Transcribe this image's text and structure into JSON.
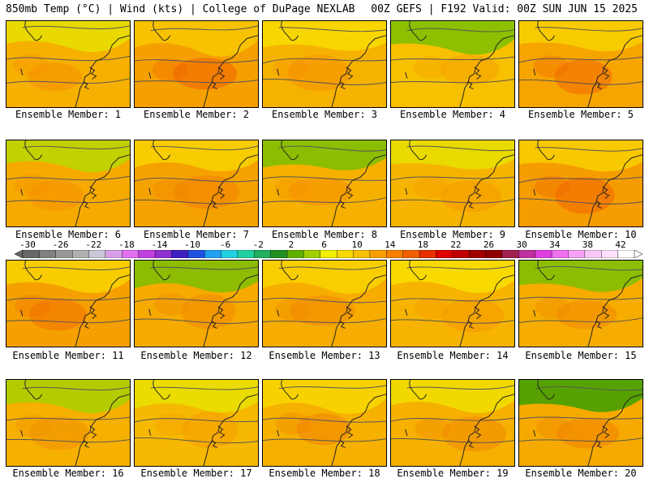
{
  "header": {
    "left": "850mb Temp (°C) | Wind (kts) | College of DuPage NEXLAB",
    "right": "00Z GEFS | F192 Valid: 00Z SUN JUN 15 2025"
  },
  "members": [
    {
      "label": "Ensemble Member: 1",
      "style": {
        "base": "#f6b000",
        "warm": "#f59000",
        "cool": "#e6e000"
      }
    },
    {
      "label": "Ensemble Member: 2",
      "style": {
        "base": "#f5a000",
        "warm": "#f06000",
        "cool": "#f8c800"
      }
    },
    {
      "label": "Ensemble Member: 3",
      "style": {
        "base": "#f6b200",
        "warm": "#f69000",
        "cool": "#f8dc00"
      }
    },
    {
      "label": "Ensemble Member: 4",
      "style": {
        "base": "#f7c000",
        "warm": "#f6a000",
        "cool": "#7ac000"
      }
    },
    {
      "label": "Ensemble Member: 5",
      "style": {
        "base": "#f6a400",
        "warm": "#f06800",
        "cool": "#f8d200"
      }
    },
    {
      "label": "Ensemble Member: 6",
      "style": {
        "base": "#f6aa00",
        "warm": "#f69000",
        "cool": "#b8d800"
      }
    },
    {
      "label": "Ensemble Member: 7",
      "style": {
        "base": "#f5a200",
        "warm": "#f08000",
        "cool": "#f8d400"
      }
    },
    {
      "label": "Ensemble Member: 8",
      "style": {
        "base": "#f6b000",
        "warm": "#f69000",
        "cool": "#7ac000"
      }
    },
    {
      "label": "Ensemble Member: 9",
      "style": {
        "base": "#f6b400",
        "warm": "#f69800",
        "cool": "#e6e000"
      }
    },
    {
      "label": "Ensemble Member: 10",
      "style": {
        "base": "#f59c00",
        "warm": "#f06400",
        "cool": "#f8d000"
      }
    },
    {
      "label": "Ensemble Member: 11",
      "style": {
        "base": "#f5a000",
        "warm": "#f07000",
        "cool": "#f8d400"
      }
    },
    {
      "label": "Ensemble Member: 12",
      "style": {
        "base": "#f6aa00",
        "warm": "#f08800",
        "cool": "#7ac000"
      }
    },
    {
      "label": "Ensemble Member: 13",
      "style": {
        "base": "#f6ac00",
        "warm": "#f08800",
        "cool": "#f8d400"
      }
    },
    {
      "label": "Ensemble Member: 14",
      "style": {
        "base": "#f6b400",
        "warm": "#f69800",
        "cool": "#f8e000"
      }
    },
    {
      "label": "Ensemble Member: 15",
      "style": {
        "base": "#f6ac00",
        "warm": "#f08800",
        "cool": "#7ac000"
      }
    },
    {
      "label": "Ensemble Member: 16",
      "style": {
        "base": "#f6b000",
        "warm": "#f09000",
        "cool": "#a8d000"
      }
    },
    {
      "label": "Ensemble Member: 17",
      "style": {
        "base": "#f6b800",
        "warm": "#f69c00",
        "cool": "#e8e000"
      }
    },
    {
      "label": "Ensemble Member: 18",
      "style": {
        "base": "#f6b000",
        "warm": "#f08400",
        "cool": "#f8d800"
      }
    },
    {
      "label": "Ensemble Member: 19",
      "style": {
        "base": "#f6b000",
        "warm": "#f08800",
        "cool": "#f0e000"
      }
    },
    {
      "label": "Ensemble Member: 20",
      "style": {
        "base": "#f6aa00",
        "warm": "#f08000",
        "cool": "#3aa000"
      }
    }
  ],
  "colorbar": {
    "labels": [
      "-30",
      "-26",
      "-22",
      "-18",
      "-14",
      "-10",
      "-6",
      "-2",
      "2",
      "6",
      "10",
      "14",
      "18",
      "22",
      "26",
      "30",
      "34",
      "38",
      "42"
    ],
    "colors": [
      "#686868",
      "#808080",
      "#989898",
      "#b0b0b0",
      "#c8c8d8",
      "#d8a0e8",
      "#e070f0",
      "#c040e0",
      "#9030d0",
      "#4020c0",
      "#2050e0",
      "#20a0f0",
      "#20d0e0",
      "#20d0a0",
      "#20b060",
      "#209020",
      "#60b000",
      "#a0d000",
      "#f0f000",
      "#f8d800",
      "#f8c000",
      "#f8a000",
      "#f88000",
      "#f06000",
      "#e83000",
      "#e00000",
      "#c00000",
      "#a00000",
      "#900000",
      "#a02050",
      "#c030a0",
      "#e040e0",
      "#f070f0",
      "#f8a0f8",
      "#f8c8f8",
      "#ffe0ff",
      "#ffffff"
    ]
  }
}
